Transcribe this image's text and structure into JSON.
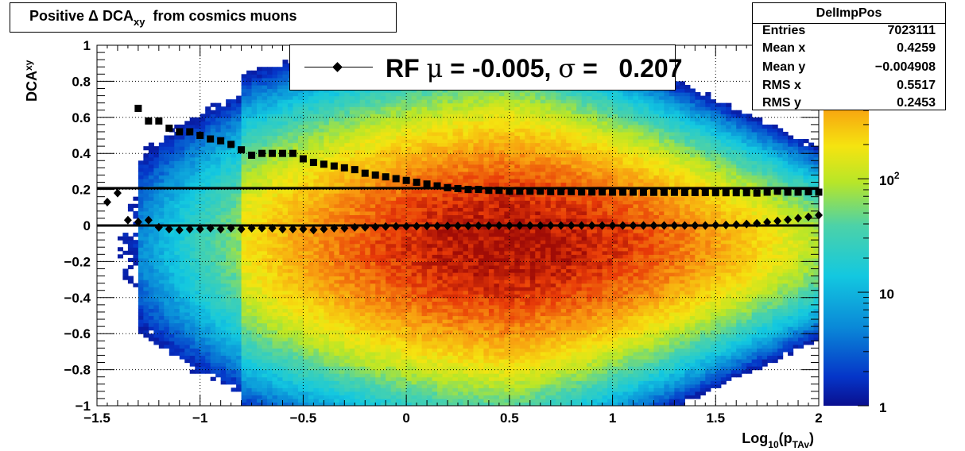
{
  "title": {
    "prefix": "Positive Δ DCA",
    "sub": "xy",
    "suffix": "from cosmics muons"
  },
  "stats": {
    "name": "DelImpPos",
    "rows": [
      {
        "key": "Entries",
        "value": "7023111"
      },
      {
        "key": "Mean x",
        "value": "0.4259"
      },
      {
        "key": "Mean y",
        "value": "−0.004908"
      },
      {
        "key": "RMS x",
        "value": "0.5517"
      },
      {
        "key": "RMS y",
        "value": "0.2453"
      }
    ]
  },
  "legend": {
    "label_prefix": "RF ",
    "mu_symbol": "μ",
    "mu_text": " = -0.005, ",
    "sigma_symbol": "σ",
    "sigma_text": " =   0.207"
  },
  "colors": {
    "marker": "#000000",
    "frame": "#000000"
  },
  "chart_data": {
    "type": "heatmap",
    "title": "Positive Δ DCA_xy from cosmics muons",
    "xlabel": {
      "main": "Log",
      "sub1": "10",
      "mid": "(p",
      "sub2": "TAv",
      "end": ")"
    },
    "ylabel": {
      "main": "DCA",
      "sub": "xy"
    },
    "xlim": [
      -1.5,
      2
    ],
    "ylim": [
      -1,
      1
    ],
    "x_ticks": [
      -1.5,
      -1,
      -0.5,
      0,
      0.5,
      1,
      1.5,
      2
    ],
    "x_tick_labels": [
      "−1.5",
      "−1",
      "−0.5",
      "0",
      "0.5",
      "1",
      "1.5",
      "2"
    ],
    "y_ticks": [
      -1,
      -0.8,
      -0.6,
      -0.4,
      -0.2,
      0,
      0.2,
      0.4,
      0.6,
      0.8,
      1
    ],
    "y_tick_labels": [
      "−1",
      "−0.8",
      "−0.6",
      "−0.4",
      "−0.2",
      "0",
      "0.2",
      "0.4",
      "0.6",
      "0.8",
      "1"
    ],
    "grid": true,
    "log_z": true,
    "colorbar": {
      "labels": [
        {
          "value": 1,
          "text": "1"
        },
        {
          "value": 10,
          "text": "10"
        },
        {
          "value": 100,
          "text_base": "10",
          "text_exp": "2"
        }
      ],
      "zmin": 1,
      "zmax": 1500
    },
    "density_peak": {
      "x": 0.5,
      "y": -0.1
    },
    "fit_lines": [
      {
        "name": "mean fit",
        "y": 0.0
      },
      {
        "name": "sigma fit",
        "y": 0.207
      }
    ],
    "series": [
      {
        "name": "mean",
        "marker": "diamond",
        "x": [
          -1.45,
          -1.4,
          -1.35,
          -1.3,
          -1.25,
          -1.2,
          -1.15,
          -1.1,
          -1.05,
          -1.0,
          -0.95,
          -0.9,
          -0.85,
          -0.8,
          -0.75,
          -0.7,
          -0.65,
          -0.6,
          -0.55,
          -0.5,
          -0.45,
          -0.4,
          -0.35,
          -0.3,
          -0.25,
          -0.2,
          -0.15,
          -0.1,
          -0.05,
          0.0,
          0.05,
          0.1,
          0.15,
          0.2,
          0.25,
          0.3,
          0.35,
          0.4,
          0.45,
          0.5,
          0.55,
          0.6,
          0.65,
          0.7,
          0.75,
          0.8,
          0.85,
          0.9,
          0.95,
          1.0,
          1.05,
          1.1,
          1.15,
          1.2,
          1.25,
          1.3,
          1.35,
          1.4,
          1.45,
          1.5,
          1.55,
          1.6,
          1.65,
          1.7,
          1.75,
          1.8,
          1.85,
          1.9,
          1.95,
          2.0
        ],
        "y": [
          0.13,
          0.18,
          0.03,
          0.02,
          0.03,
          -0.01,
          -0.02,
          -0.025,
          -0.02,
          -0.02,
          -0.015,
          -0.02,
          -0.015,
          -0.02,
          -0.015,
          -0.015,
          -0.015,
          -0.02,
          -0.02,
          -0.02,
          -0.025,
          -0.02,
          -0.015,
          -0.015,
          -0.01,
          -0.01,
          -0.008,
          -0.006,
          -0.005,
          -0.005,
          -0.004,
          -0.003,
          -0.003,
          -0.002,
          -0.002,
          -0.002,
          -0.001,
          -0.001,
          0.0,
          0.0,
          0.0,
          0.0,
          0.0,
          0.0,
          0.0,
          0.0,
          0.0,
          0.0,
          0.0,
          0.0,
          0.0,
          0.0,
          0.0,
          0.0,
          0.0,
          0.0,
          0.0,
          0.0,
          0.0,
          0.002,
          0.003,
          0.005,
          0.008,
          0.012,
          0.018,
          0.025,
          0.032,
          0.04,
          0.048,
          0.057
        ]
      },
      {
        "name": "sigma",
        "marker": "square",
        "x": [
          -1.3,
          -1.25,
          -1.2,
          -1.15,
          -1.1,
          -1.05,
          -1.0,
          -0.95,
          -0.9,
          -0.85,
          -0.8,
          -0.75,
          -0.7,
          -0.65,
          -0.6,
          -0.55,
          -0.5,
          -0.45,
          -0.4,
          -0.35,
          -0.3,
          -0.25,
          -0.2,
          -0.15,
          -0.1,
          -0.05,
          0.0,
          0.05,
          0.1,
          0.15,
          0.2,
          0.25,
          0.3,
          0.35,
          0.4,
          0.45,
          0.5,
          0.55,
          0.6,
          0.65,
          0.7,
          0.75,
          0.8,
          0.85,
          0.9,
          0.95,
          1.0,
          1.05,
          1.1,
          1.15,
          1.2,
          1.25,
          1.3,
          1.35,
          1.4,
          1.45,
          1.5,
          1.55,
          1.6,
          1.65,
          1.7,
          1.75,
          1.8,
          1.85,
          1.9,
          1.95,
          2.0
        ],
        "y": [
          0.65,
          0.58,
          0.58,
          0.54,
          0.52,
          0.52,
          0.5,
          0.48,
          0.47,
          0.45,
          0.42,
          0.39,
          0.4,
          0.4,
          0.4,
          0.4,
          0.37,
          0.35,
          0.34,
          0.33,
          0.32,
          0.31,
          0.29,
          0.28,
          0.27,
          0.26,
          0.25,
          0.24,
          0.23,
          0.22,
          0.21,
          0.205,
          0.2,
          0.2,
          0.195,
          0.195,
          0.19,
          0.19,
          0.19,
          0.19,
          0.188,
          0.188,
          0.188,
          0.186,
          0.186,
          0.186,
          0.185,
          0.185,
          0.185,
          0.184,
          0.184,
          0.184,
          0.184,
          0.183,
          0.183,
          0.183,
          0.182,
          0.182,
          0.182,
          0.182,
          0.18,
          0.185,
          0.19,
          0.185,
          0.185,
          0.187,
          0.185
        ]
      }
    ]
  }
}
